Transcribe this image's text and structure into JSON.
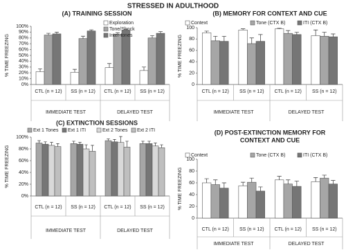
{
  "title": "STRESSED IN ADULTHOOD",
  "chart_data": [
    {
      "type": "bar",
      "title": "(A) TRAINING SESSION",
      "y_label": "% TIME FREEZING",
      "categories": [
        "CTL (n = 12)",
        "SS (n = 12)",
        "CTL (n = 12)",
        "SS (n = 12)"
      ],
      "group_labels": [
        "IMMEDIATE TEST",
        "DELAYED TEST"
      ],
      "ylim": [
        0,
        100
      ],
      "yticks": [
        {
          "value": 0,
          "label": "0%"
        },
        {
          "value": 10,
          "label": "10%"
        },
        {
          "value": 20,
          "label": "20%"
        },
        {
          "value": 30,
          "label": "30%"
        },
        {
          "value": 40,
          "label": "40%"
        },
        {
          "value": 50,
          "label": "50%"
        },
        {
          "value": 60,
          "label": "60%"
        },
        {
          "value": 70,
          "label": "70%"
        },
        {
          "value": 80,
          "label": "80%"
        },
        {
          "value": 90,
          "label": "90%"
        },
        {
          "value": 100,
          "label": "100%"
        }
      ],
      "series": [
        {
          "name": "Exploration",
          "color": "#ffffff",
          "values": [
            22,
            21,
            29,
            24
          ],
          "errors": [
            5,
            5,
            7,
            6
          ]
        },
        {
          "name": "Tone/Shock",
          "color": "#a6a6a6",
          "values": [
            85,
            79,
            86,
            80
          ],
          "errors": [
            3,
            4,
            3,
            4
          ]
        },
        {
          "name": "Inter-tones",
          "color": "#767676",
          "values": [
            87,
            92,
            93,
            88
          ],
          "errors": [
            3,
            2,
            2,
            3
          ]
        }
      ]
    },
    {
      "type": "bar",
      "title": "(B) MEMORY FOR CONTEXT AND CUE",
      "y_label": "% TIME FREEZING",
      "categories": [
        "CTL (n = 12)",
        "SS (n = 12)",
        "CTL (n = 12)",
        "SS (n = 12)"
      ],
      "group_labels": [
        "IMMEDIATE TEST",
        "DELAYED TEST"
      ],
      "ylim": [
        0,
        100
      ],
      "yticks": [
        0,
        20,
        40,
        60,
        80,
        100
      ],
      "series": [
        {
          "name": "Context",
          "color": "#ffffff",
          "values": [
            91,
            96,
            98,
            86
          ],
          "errors": [
            3,
            2,
            1,
            10
          ]
        },
        {
          "name": "Tone (CTX B)",
          "color": "#a6a6a6",
          "values": [
            77,
            72,
            90,
            85
          ],
          "errors": [
            8,
            10,
            5,
            7
          ]
        },
        {
          "name": "ITI (CTX B)",
          "color": "#767676",
          "values": [
            76,
            76,
            88,
            84
          ],
          "errors": [
            9,
            12,
            4,
            5
          ]
        }
      ]
    },
    {
      "type": "bar",
      "title": "(C) EXTINCTION SESSIONS",
      "y_label": "% TIME FREEZING",
      "categories": [
        "CTL (n = 12)",
        "SS (n = 12)",
        "CTL (n = 12)",
        "SS (n = 12)"
      ],
      "group_labels": [
        "IMMEDIATE TEST",
        "DELAYED TEST"
      ],
      "ylim": [
        0,
        100
      ],
      "yticks": [
        {
          "value": 0,
          "label": "0%"
        },
        {
          "value": 20,
          "label": "20%"
        },
        {
          "value": 40,
          "label": "40%"
        },
        {
          "value": 60,
          "label": "60%"
        },
        {
          "value": 80,
          "label": "80%"
        },
        {
          "value": 100,
          "label": "100%"
        }
      ],
      "series": [
        {
          "name": "Ext 1 Tones",
          "color": "#a6a6a6",
          "values": [
            90,
            89,
            94,
            89
          ],
          "errors": [
            4,
            4,
            3,
            4
          ]
        },
        {
          "name": "Ext 1 ITI",
          "color": "#767676",
          "values": [
            88,
            88,
            92,
            89
          ],
          "errors": [
            4,
            3,
            4,
            4
          ]
        },
        {
          "name": "Ext 2 Tones",
          "color": "#d9d9d9",
          "values": [
            86,
            80,
            91,
            85
          ],
          "errors": [
            5,
            7,
            10,
            5
          ]
        },
        {
          "name": "Ext 2 ITI",
          "color": "#bfbfbf",
          "values": [
            84,
            76,
            83,
            82
          ],
          "errors": [
            5,
            10,
            10,
            5
          ]
        }
      ]
    },
    {
      "type": "bar",
      "title": [
        "(D) POST-EXTINCTION MEMORY FOR",
        "CONTEXT AND CUE"
      ],
      "y_label": "% TIME FREEZING",
      "categories": [
        "CTL (n = 12)",
        "SS (n = 12)",
        "CTL (n = 12)",
        "SS (n = 12)"
      ],
      "group_labels": [
        "IMMEDIATE TEST",
        "DELAYED TEST"
      ],
      "ylim": [
        0,
        100
      ],
      "yticks": [
        0,
        20,
        40,
        60,
        80,
        100
      ],
      "series": [
        {
          "name": "Context",
          "color": "#ffffff",
          "values": [
            60,
            55,
            65,
            62
          ],
          "errors": [
            7,
            6,
            6,
            7
          ]
        },
        {
          "name": "Tone (CTX B)",
          "color": "#a6a6a6",
          "values": [
            57,
            61,
            58,
            68
          ],
          "errors": [
            8,
            7,
            7,
            5
          ]
        },
        {
          "name": "ITI (CTX B)",
          "color": "#767676",
          "values": [
            51,
            46,
            54,
            58
          ],
          "errors": [
            9,
            7,
            9,
            6
          ]
        }
      ]
    }
  ]
}
